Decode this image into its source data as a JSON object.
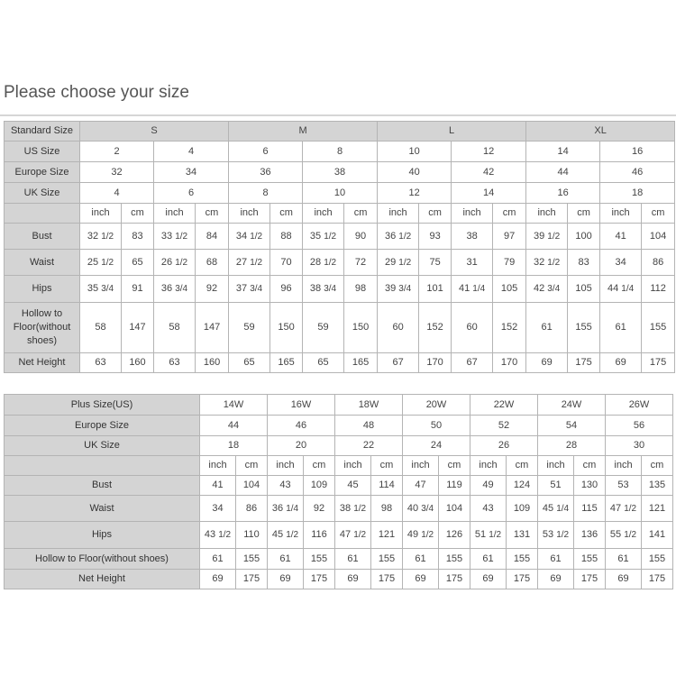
{
  "title": "Please choose your size",
  "standard_table": {
    "header_label": "Standard Size",
    "groups": [
      "S",
      "M",
      "L",
      "XL"
    ],
    "size_rows": [
      {
        "label": "US Size",
        "values": [
          "2",
          "4",
          "6",
          "8",
          "10",
          "12",
          "14",
          "16"
        ]
      },
      {
        "label": "Europe Size",
        "values": [
          "32",
          "34",
          "36",
          "38",
          "40",
          "42",
          "44",
          "46"
        ]
      },
      {
        "label": "UK Size",
        "values": [
          "4",
          "6",
          "8",
          "10",
          "12",
          "14",
          "16",
          "18"
        ]
      }
    ],
    "units": [
      "inch",
      "cm"
    ],
    "measure_rows": [
      {
        "label": "Bust",
        "values": [
          "32 1/2",
          "83",
          "33 1/2",
          "84",
          "34 1/2",
          "88",
          "35 1/2",
          "90",
          "36 1/2",
          "93",
          "38",
          "97",
          "39 1/2",
          "100",
          "41",
          "104"
        ]
      },
      {
        "label": "Waist",
        "values": [
          "25 1/2",
          "65",
          "26 1/2",
          "68",
          "27 1/2",
          "70",
          "28 1/2",
          "72",
          "29 1/2",
          "75",
          "31",
          "79",
          "32 1/2",
          "83",
          "34",
          "86"
        ]
      },
      {
        "label": "Hips",
        "values": [
          "35 3/4",
          "91",
          "36 3/4",
          "92",
          "37 3/4",
          "96",
          "38 3/4",
          "98",
          "39 3/4",
          "101",
          "41 1/4",
          "105",
          "42 3/4",
          "105",
          "44 1/4",
          "112"
        ]
      },
      {
        "label": "Hollow to Floor(without shoes)",
        "values": [
          "58",
          "147",
          "58",
          "147",
          "59",
          "150",
          "59",
          "150",
          "60",
          "152",
          "60",
          "152",
          "61",
          "155",
          "61",
          "155"
        ]
      },
      {
        "label": "Net Height",
        "values": [
          "63",
          "160",
          "63",
          "160",
          "65",
          "165",
          "65",
          "165",
          "67",
          "170",
          "67",
          "170",
          "69",
          "175",
          "69",
          "175"
        ]
      }
    ]
  },
  "plus_table": {
    "size_rows": [
      {
        "label": "Plus Size(US)",
        "values": [
          "14W",
          "16W",
          "18W",
          "20W",
          "22W",
          "24W",
          "26W"
        ]
      },
      {
        "label": "Europe Size",
        "values": [
          "44",
          "46",
          "48",
          "50",
          "52",
          "54",
          "56"
        ]
      },
      {
        "label": "UK Size",
        "values": [
          "18",
          "20",
          "22",
          "24",
          "26",
          "28",
          "30"
        ]
      }
    ],
    "units": [
      "inch",
      "cm"
    ],
    "measure_rows": [
      {
        "label": "Bust",
        "values": [
          "41",
          "104",
          "43",
          "109",
          "45",
          "114",
          "47",
          "119",
          "49",
          "124",
          "51",
          "130",
          "53",
          "135"
        ]
      },
      {
        "label": "Waist",
        "values": [
          "34",
          "86",
          "36 1/4",
          "92",
          "38 1/2",
          "98",
          "40 3/4",
          "104",
          "43",
          "109",
          "45 1/4",
          "115",
          "47 1/2",
          "121"
        ]
      },
      {
        "label": "Hips",
        "values": [
          "43 1/2",
          "110",
          "45 1/2",
          "116",
          "47 1/2",
          "121",
          "49 1/2",
          "126",
          "51 1/2",
          "131",
          "53 1/2",
          "136",
          "55 1/2",
          "141"
        ]
      },
      {
        "label": "Hollow to Floor(without shoes)",
        "values": [
          "61",
          "155",
          "61",
          "155",
          "61",
          "155",
          "61",
          "155",
          "61",
          "155",
          "61",
          "155",
          "61",
          "155"
        ]
      },
      {
        "label": "Net Height",
        "values": [
          "69",
          "175",
          "69",
          "175",
          "69",
          "175",
          "69",
          "175",
          "69",
          "175",
          "69",
          "175",
          "69",
          "175"
        ]
      }
    ]
  }
}
